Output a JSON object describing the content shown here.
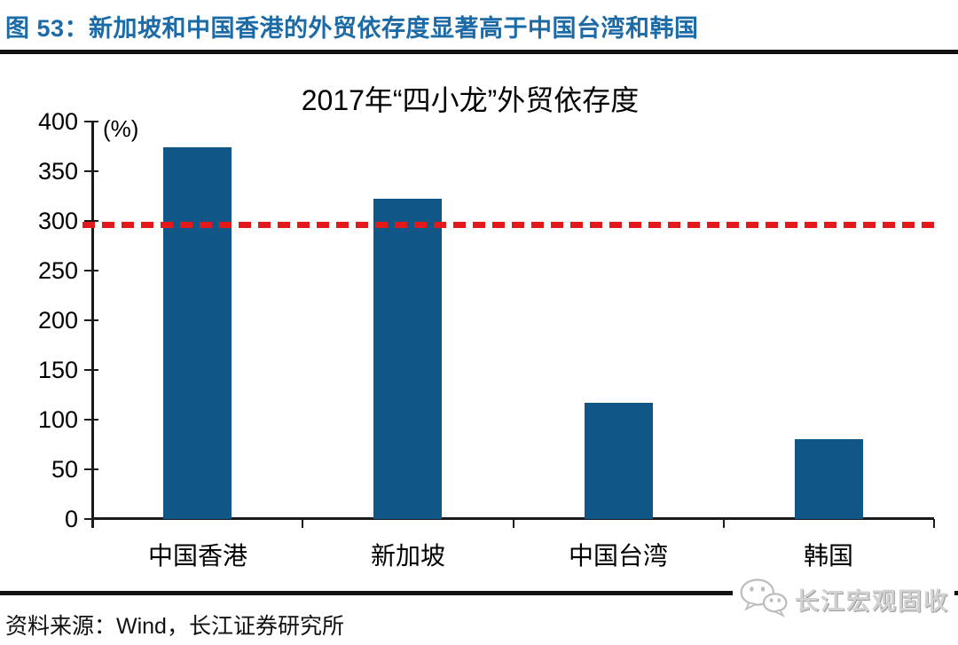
{
  "figure": {
    "title": "图 53：新加坡和中国香港的外贸依存度显著高于中国台湾和韩国"
  },
  "chart_data": {
    "type": "bar",
    "title": "2017年“四小龙”外贸依存度",
    "unit_label": "(%)",
    "categories": [
      "中国香港",
      "新加坡",
      "中国台湾",
      "韩国"
    ],
    "values": [
      374,
      322,
      117,
      80
    ],
    "ylim": [
      0,
      400
    ],
    "yticks": [
      0,
      50,
      100,
      150,
      200,
      250,
      300,
      350,
      400
    ],
    "xlabel": "",
    "ylabel": "",
    "grid": false,
    "legend": "none",
    "bar_color": "#105788",
    "reference_line": {
      "value": 296,
      "style": "dashed",
      "color": "#E31A1C"
    }
  },
  "footer": {
    "source": "资料来源：Wind，长江证券研究所",
    "watermark": "长江宏观固收",
    "watermark_icon": "wechat-logo"
  },
  "colors": {
    "figure_title": "#1C6BA6",
    "rule": "#111111",
    "axis": "#1A1A1A",
    "text": "#000000"
  }
}
